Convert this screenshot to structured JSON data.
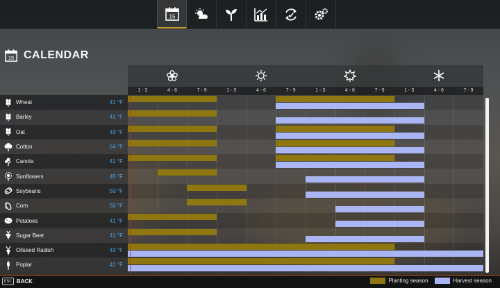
{
  "colors": {
    "planting": "#8e7710",
    "harvest": "#a9b6f3",
    "temperature": "#4aa3e6",
    "accent": "#c9a227"
  },
  "nav": {
    "tabs": [
      {
        "icon": "calendar-icon",
        "text": "15",
        "active": true
      },
      {
        "icon": "weather-icon",
        "active": false
      },
      {
        "icon": "sprout-icon",
        "active": false
      },
      {
        "icon": "statistics-icon",
        "active": false
      },
      {
        "icon": "economy-icon",
        "active": false
      },
      {
        "icon": "settings-icon",
        "active": false
      }
    ]
  },
  "page": {
    "title": "CALENDAR",
    "title_icon_text": "15"
  },
  "seasons": [
    {
      "icon": "spring-flower-icon"
    },
    {
      "icon": "summer-sun-icon"
    },
    {
      "icon": "autumn-leaf-icon"
    },
    {
      "icon": "winter-snowflake-icon"
    }
  ],
  "months": [
    "1 - 3",
    "4 - 6",
    "7 - 9",
    "1 - 3",
    "4 - 6",
    "7 - 9",
    "1 - 3",
    "4 - 6",
    "7 - 9",
    "1 - 3",
    "4 - 6",
    "7 - 9"
  ],
  "crops": [
    {
      "name": "Wheat",
      "temp": "41 °F",
      "icon": "wheat-icon",
      "planting": [
        [
          0,
          3
        ]
      ],
      "harvest": [
        [
          5,
          10
        ]
      ],
      "planting_extra": [
        [
          5,
          9
        ]
      ]
    },
    {
      "name": "Barley",
      "temp": "41 °F",
      "icon": "barley-icon",
      "planting": [
        [
          0,
          3
        ]
      ],
      "harvest": [
        [
          5,
          10
        ]
      ],
      "planting_extra": []
    },
    {
      "name": "Oat",
      "temp": "43 °F",
      "icon": "oat-icon",
      "planting": [
        [
          0,
          3
        ]
      ],
      "harvest": [
        [
          5,
          10
        ]
      ],
      "planting_extra": [
        [
          5,
          9
        ]
      ]
    },
    {
      "name": "Cotton",
      "temp": "64 °F",
      "icon": "cotton-icon",
      "planting": [
        [
          0,
          3
        ]
      ],
      "harvest": [
        [
          5,
          10
        ]
      ],
      "planting_extra": [
        [
          5,
          9
        ]
      ]
    },
    {
      "name": "Canola",
      "temp": "41 °F",
      "icon": "canola-icon",
      "planting": [
        [
          0,
          3
        ]
      ],
      "harvest": [
        [
          5,
          10
        ]
      ],
      "planting_extra": [
        [
          5,
          9
        ]
      ]
    },
    {
      "name": "Sunflowers",
      "temp": "45 °F",
      "icon": "sunflower-icon",
      "planting": [
        [
          1,
          3
        ]
      ],
      "harvest": [
        [
          6,
          10
        ]
      ],
      "planting_extra": []
    },
    {
      "name": "Soybeans",
      "temp": "50 °F",
      "icon": "soybean-icon",
      "planting": [
        [
          2,
          4
        ]
      ],
      "harvest": [
        [
          6,
          10
        ]
      ],
      "planting_extra": []
    },
    {
      "name": "Corn",
      "temp": "50 °F",
      "icon": "corn-icon",
      "planting": [
        [
          2,
          4
        ]
      ],
      "harvest": [
        [
          7,
          10
        ]
      ],
      "planting_extra": []
    },
    {
      "name": "Potatoes",
      "temp": "41 °F",
      "icon": "potato-icon",
      "planting": [
        [
          0,
          3
        ]
      ],
      "harvest": [
        [
          7,
          10
        ]
      ],
      "planting_extra": []
    },
    {
      "name": "Sugar Beet",
      "temp": "41 °F",
      "icon": "sugar-beet-icon",
      "planting": [
        [
          0,
          3
        ]
      ],
      "harvest": [
        [
          6,
          10
        ]
      ],
      "planting_extra": []
    },
    {
      "name": "Oilseed Radish",
      "temp": "43 °F",
      "icon": "radish-icon",
      "planting": [
        [
          0,
          9
        ]
      ],
      "harvest": [
        [
          0,
          12
        ]
      ],
      "planting_extra": []
    },
    {
      "name": "Poplar",
      "temp": "41 °F",
      "icon": "poplar-icon",
      "planting": [
        [
          0,
          9
        ]
      ],
      "harvest": [
        [
          0,
          12
        ]
      ],
      "planting_extra": []
    }
  ],
  "footer": {
    "esc_key": "ESC",
    "back_label": "BACK",
    "legend_planting": "Planting season",
    "legend_harvest": "Harvest season"
  }
}
